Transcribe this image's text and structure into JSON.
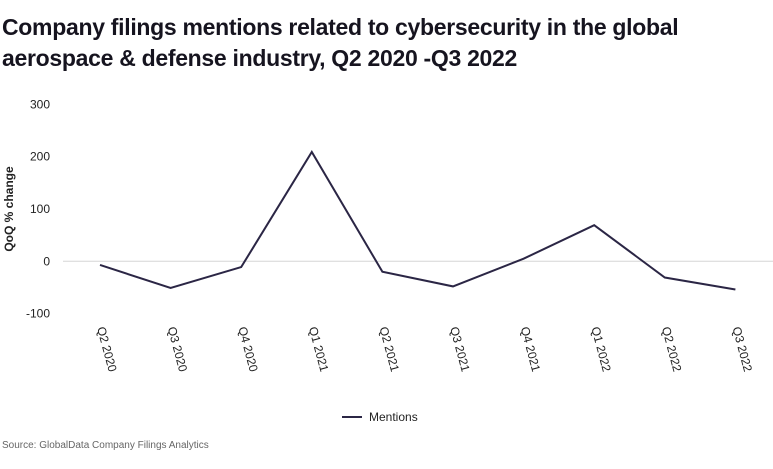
{
  "title": "Company filings mentions related to cybersecurity in the global aerospace & defense industry, Q2 2020 -Q3 2022",
  "source": "Source: GlobalData Company Filings Analytics",
  "chart_data": {
    "type": "line",
    "title": "Company filings mentions related to cybersecurity in the global aerospace & defense industry, Q2 2020 -Q3 2022",
    "xlabel": "",
    "ylabel": "QoQ % change",
    "ylim": [
      -100,
      300
    ],
    "yticks": [
      300,
      200,
      100,
      0,
      -100
    ],
    "categories": [
      "Q2 2020",
      "Q3 2020",
      "Q4 2020",
      "Q1 2021",
      "Q2 2021",
      "Q3 2021",
      "Q4 2021",
      "Q1 2022",
      "Q2 2022",
      "Q3 2022"
    ],
    "series": [
      {
        "name": "Mentions",
        "color": "#2b2645",
        "values": [
          -7,
          -51,
          -11,
          209,
          -20,
          -48,
          5,
          69,
          -31,
          -54
        ]
      }
    ],
    "legend": "bottom-center",
    "grid": "zero line only"
  }
}
